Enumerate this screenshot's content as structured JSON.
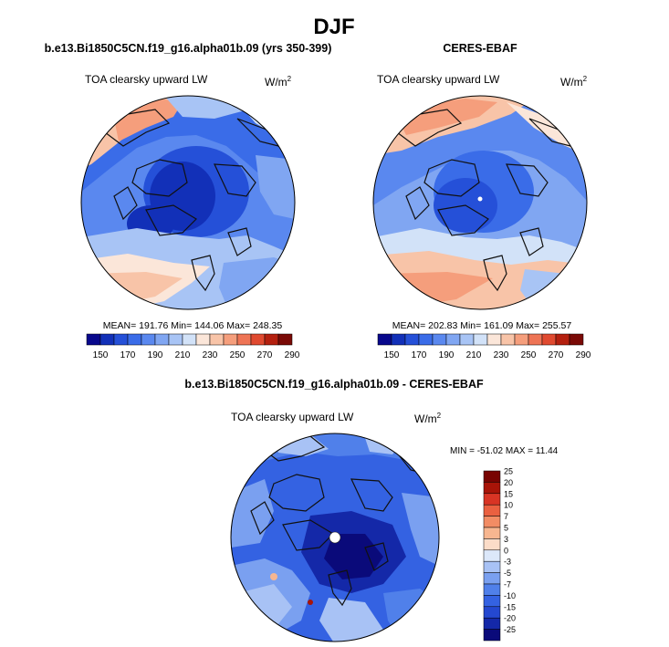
{
  "figure": {
    "season": "DJF"
  },
  "colors": {
    "abs_scale": [
      "#08088c",
      "#1230b8",
      "#2550d8",
      "#3a6ce8",
      "#5a88ef",
      "#80a6f2",
      "#a8c4f5",
      "#d2e2f8",
      "#fbe6d9",
      "#f8c4a8",
      "#f59e7c",
      "#ee7455",
      "#e04a30",
      "#b4200f",
      "#7a0a06"
    ],
    "diff_scale": [
      "#0a0a7a",
      "#1428a8",
      "#2448d0",
      "#3462e2",
      "#5080ea",
      "#7aa0f0",
      "#a8c2f5",
      "#dce8fa",
      "#fbdcc8",
      "#f7b690",
      "#f28c64",
      "#ea6040",
      "#d83424",
      "#a81408",
      "#780402"
    ],
    "coast": "#111111"
  },
  "chart_data": [
    {
      "type": "heatmap",
      "projection": "north-polar-stereographic",
      "title": "b.e13.Bi1850C5CN.f19_g16.alpha01b.09 (yrs 350-399)",
      "left_label": "TOA clearsky upward LW",
      "units": "W/m",
      "units_sup": "2",
      "stats": "MEAN= 191.76  Min= 144.06  Max= 248.35",
      "mean": 191.76,
      "min": 144.06,
      "max": 248.35,
      "colorbar": {
        "orientation": "horizontal",
        "levels": [
          140,
          150,
          160,
          170,
          180,
          190,
          200,
          210,
          220,
          230,
          240,
          250,
          260,
          270,
          280,
          290
        ],
        "tick_labels": [
          "150",
          "170",
          "190",
          "210",
          "230",
          "250",
          "270",
          "290"
        ]
      }
    },
    {
      "type": "heatmap",
      "projection": "north-polar-stereographic",
      "title": "CERES-EBAF",
      "left_label": "TOA clearsky upward LW",
      "units": "W/m",
      "units_sup": "2",
      "stats": "MEAN= 202.83  Min= 161.09  Max= 255.57",
      "mean": 202.83,
      "min": 161.09,
      "max": 255.57,
      "colorbar": {
        "orientation": "horizontal",
        "levels": [
          140,
          150,
          160,
          170,
          180,
          190,
          200,
          210,
          220,
          230,
          240,
          250,
          260,
          270,
          280,
          290
        ],
        "tick_labels": [
          "150",
          "170",
          "190",
          "210",
          "230",
          "250",
          "270",
          "290"
        ]
      }
    },
    {
      "type": "heatmap",
      "projection": "north-polar-stereographic",
      "title": "b.e13.Bi1850C5CN.f19_g16.alpha01b.09 - CERES-EBAF",
      "left_label": "TOA clearsky upward LW",
      "units": "W/m",
      "units_sup": "2",
      "stats": "MIN = -51.02 MAX =  11.44",
      "min": -51.02,
      "max": 11.44,
      "colorbar": {
        "orientation": "vertical",
        "levels": [
          -30,
          -25,
          -20,
          -15,
          -10,
          -7,
          -5,
          -3,
          0,
          3,
          5,
          7,
          10,
          15,
          20,
          25
        ],
        "tick_labels": [
          "25",
          "20",
          "15",
          "10",
          "7",
          "5",
          "3",
          "0",
          "-3",
          "-5",
          "-7",
          "-10",
          "-15",
          "-20",
          "-25"
        ]
      }
    }
  ]
}
